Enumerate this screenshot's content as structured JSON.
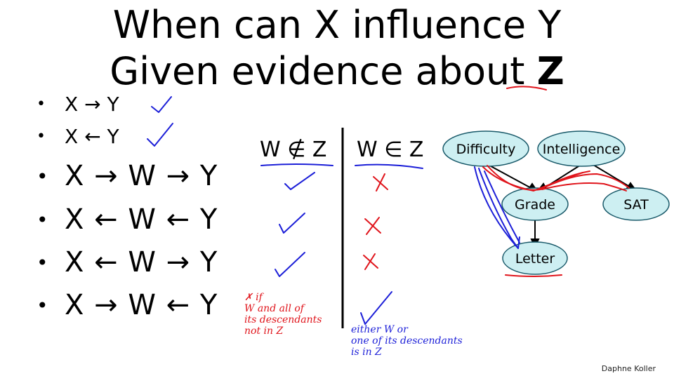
{
  "title": {
    "line1": "When can X influence Y",
    "line2_prefix": "Given evidence about ",
    "line2_z": "Z"
  },
  "bullets": [
    {
      "text": "X → Y",
      "size": "small"
    },
    {
      "text": "X ← Y",
      "size": "small"
    },
    {
      "text": "X → W → Y",
      "size": "large"
    },
    {
      "text": "X ← W ← Y",
      "size": "large"
    },
    {
      "text": "X ← W → Y",
      "size": "large"
    },
    {
      "text": "X → W ← Y",
      "size": "large"
    }
  ],
  "table": {
    "col1_header": "W ∉ Z",
    "col2_header": "W ∈ Z"
  },
  "graph": {
    "nodes": {
      "difficulty": "Difficulty",
      "intelligence": "Intelligence",
      "grade": "Grade",
      "sat": "SAT",
      "letter": "Letter"
    },
    "colors": {
      "node_fill": "#cdeff2",
      "node_stroke": "#1a5a6a"
    }
  },
  "handwriting": {
    "red_note": [
      "✗ if",
      "W and all of",
      "its descendants",
      "not in Z"
    ],
    "blue_note": [
      "either W or",
      "one of its descendants",
      "is in Z"
    ]
  },
  "footer": "Daphne Koller",
  "colors": {
    "red_ink": "#e0141b",
    "blue_ink": "#1c1fd8"
  }
}
